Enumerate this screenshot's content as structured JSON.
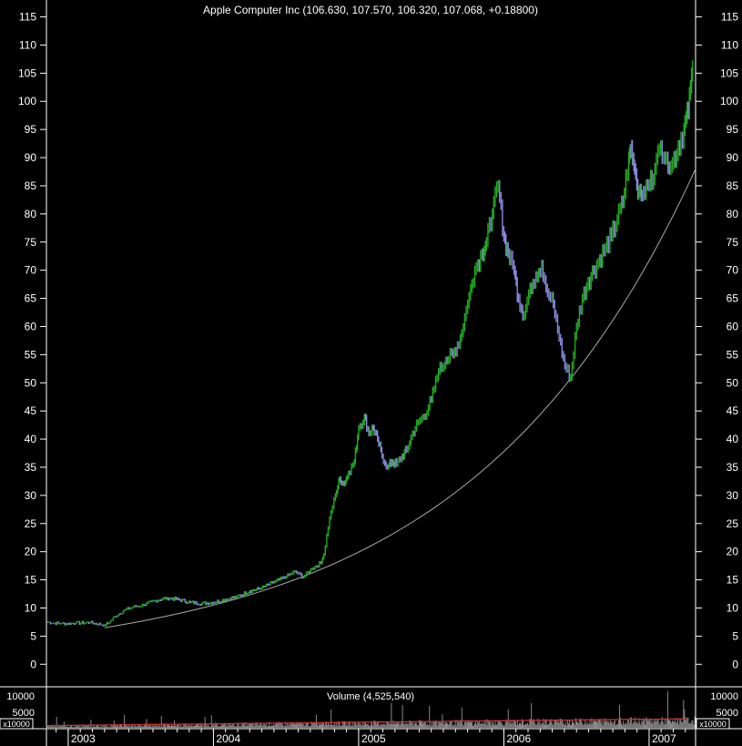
{
  "chart_data": {
    "type": "line",
    "title": "Apple Computer Inc (106.630, 107.570, 106.320, 107.068, +0.18800)",
    "ylim": [
      -4,
      118
    ],
    "y_ticks": [
      0,
      5,
      10,
      15,
      20,
      25,
      30,
      35,
      40,
      45,
      50,
      55,
      60,
      65,
      70,
      75,
      80,
      85,
      90,
      95,
      100,
      105,
      110,
      115
    ],
    "x_year_labels": [
      "2003",
      "2004",
      "2005",
      "2006",
      "2007"
    ],
    "xlim": [
      2002.85,
      2007.32
    ],
    "series": [
      {
        "role": "price",
        "color": "#22aa22",
        "down_color": "#8888dd",
        "x": [
          2002.85,
          2002.95,
          2003.05,
          2003.15,
          2003.25,
          2003.28,
          2003.32,
          2003.38,
          2003.45,
          2003.52,
          2003.6,
          2003.68,
          2003.76,
          2003.84,
          2003.92,
          2004.0,
          2004.08,
          2004.16,
          2004.25,
          2004.33,
          2004.41,
          2004.5,
          2004.56,
          2004.62,
          2004.68,
          2004.74,
          2004.76,
          2004.8,
          2004.84,
          2004.87,
          2004.9,
          2004.93,
          2004.97,
          2005.0,
          2005.04,
          2005.07,
          2005.1,
          2005.13,
          2005.16,
          2005.2,
          2005.23,
          2005.26,
          2005.3,
          2005.33,
          2005.37,
          2005.41,
          2005.45,
          2005.5,
          2005.55,
          2005.6,
          2005.65,
          2005.7,
          2005.75,
          2005.8,
          2005.85,
          2005.88,
          2005.92,
          2005.96,
          2006.0,
          2006.03,
          2006.07,
          2006.1,
          2006.14,
          2006.18,
          2006.22,
          2006.26,
          2006.3,
          2006.34,
          2006.38,
          2006.42,
          2006.46,
          2006.5,
          2006.54,
          2006.58,
          2006.62,
          2006.66,
          2006.7,
          2006.74,
          2006.78,
          2006.82,
          2006.86,
          2006.88,
          2006.9,
          2006.93,
          2006.96,
          2007.0,
          2007.04,
          2007.08,
          2007.12,
          2007.16,
          2007.2,
          2007.24,
          2007.27,
          2007.3
        ],
        "y": [
          7.5,
          7.2,
          7.3,
          7.4,
          7.0,
          7.3,
          8.5,
          9.5,
          10.2,
          10.5,
          11.3,
          11.8,
          11.5,
          11.0,
          10.8,
          11.0,
          11.5,
          12.0,
          13.0,
          13.5,
          14.5,
          15.5,
          16.5,
          15.5,
          17.0,
          18.0,
          19.5,
          26.0,
          30.0,
          33.0,
          32.0,
          34.0,
          36.0,
          42.0,
          44.0,
          41.0,
          42.0,
          40.0,
          37.0,
          35.0,
          36.0,
          35.5,
          37.0,
          38.0,
          41.0,
          43.0,
          44.0,
          47.0,
          52.0,
          54.0,
          55.0,
          58.0,
          64.0,
          70.0,
          73.0,
          75.0,
          80.0,
          85.0,
          76.0,
          73.0,
          70.0,
          65.0,
          62.0,
          67.0,
          69.0,
          71.0,
          66.0,
          64.0,
          58.0,
          53.0,
          51.0,
          60.0,
          65.0,
          68.0,
          70.0,
          72.0,
          74.0,
          76.0,
          79.0,
          82.0,
          90.0,
          92.0,
          88.0,
          84.0,
          84.0,
          85.0,
          88.0,
          92.0,
          90.0,
          89.0,
          92.0,
          95.0,
          98.0,
          106.0
        ]
      },
      {
        "role": "trendline",
        "color": "#aaaaaa",
        "x": [
          2003.25,
          2007.32
        ],
        "y": [
          6.5,
          88.0
        ]
      }
    ],
    "volume": {
      "label": "Volume (4,525,540)",
      "ticks": [
        5000,
        10000
      ],
      "ylim": [
        0,
        12000
      ],
      "scale": "x10000",
      "bar_color": "#888888",
      "average_color": "#cc3333"
    }
  }
}
